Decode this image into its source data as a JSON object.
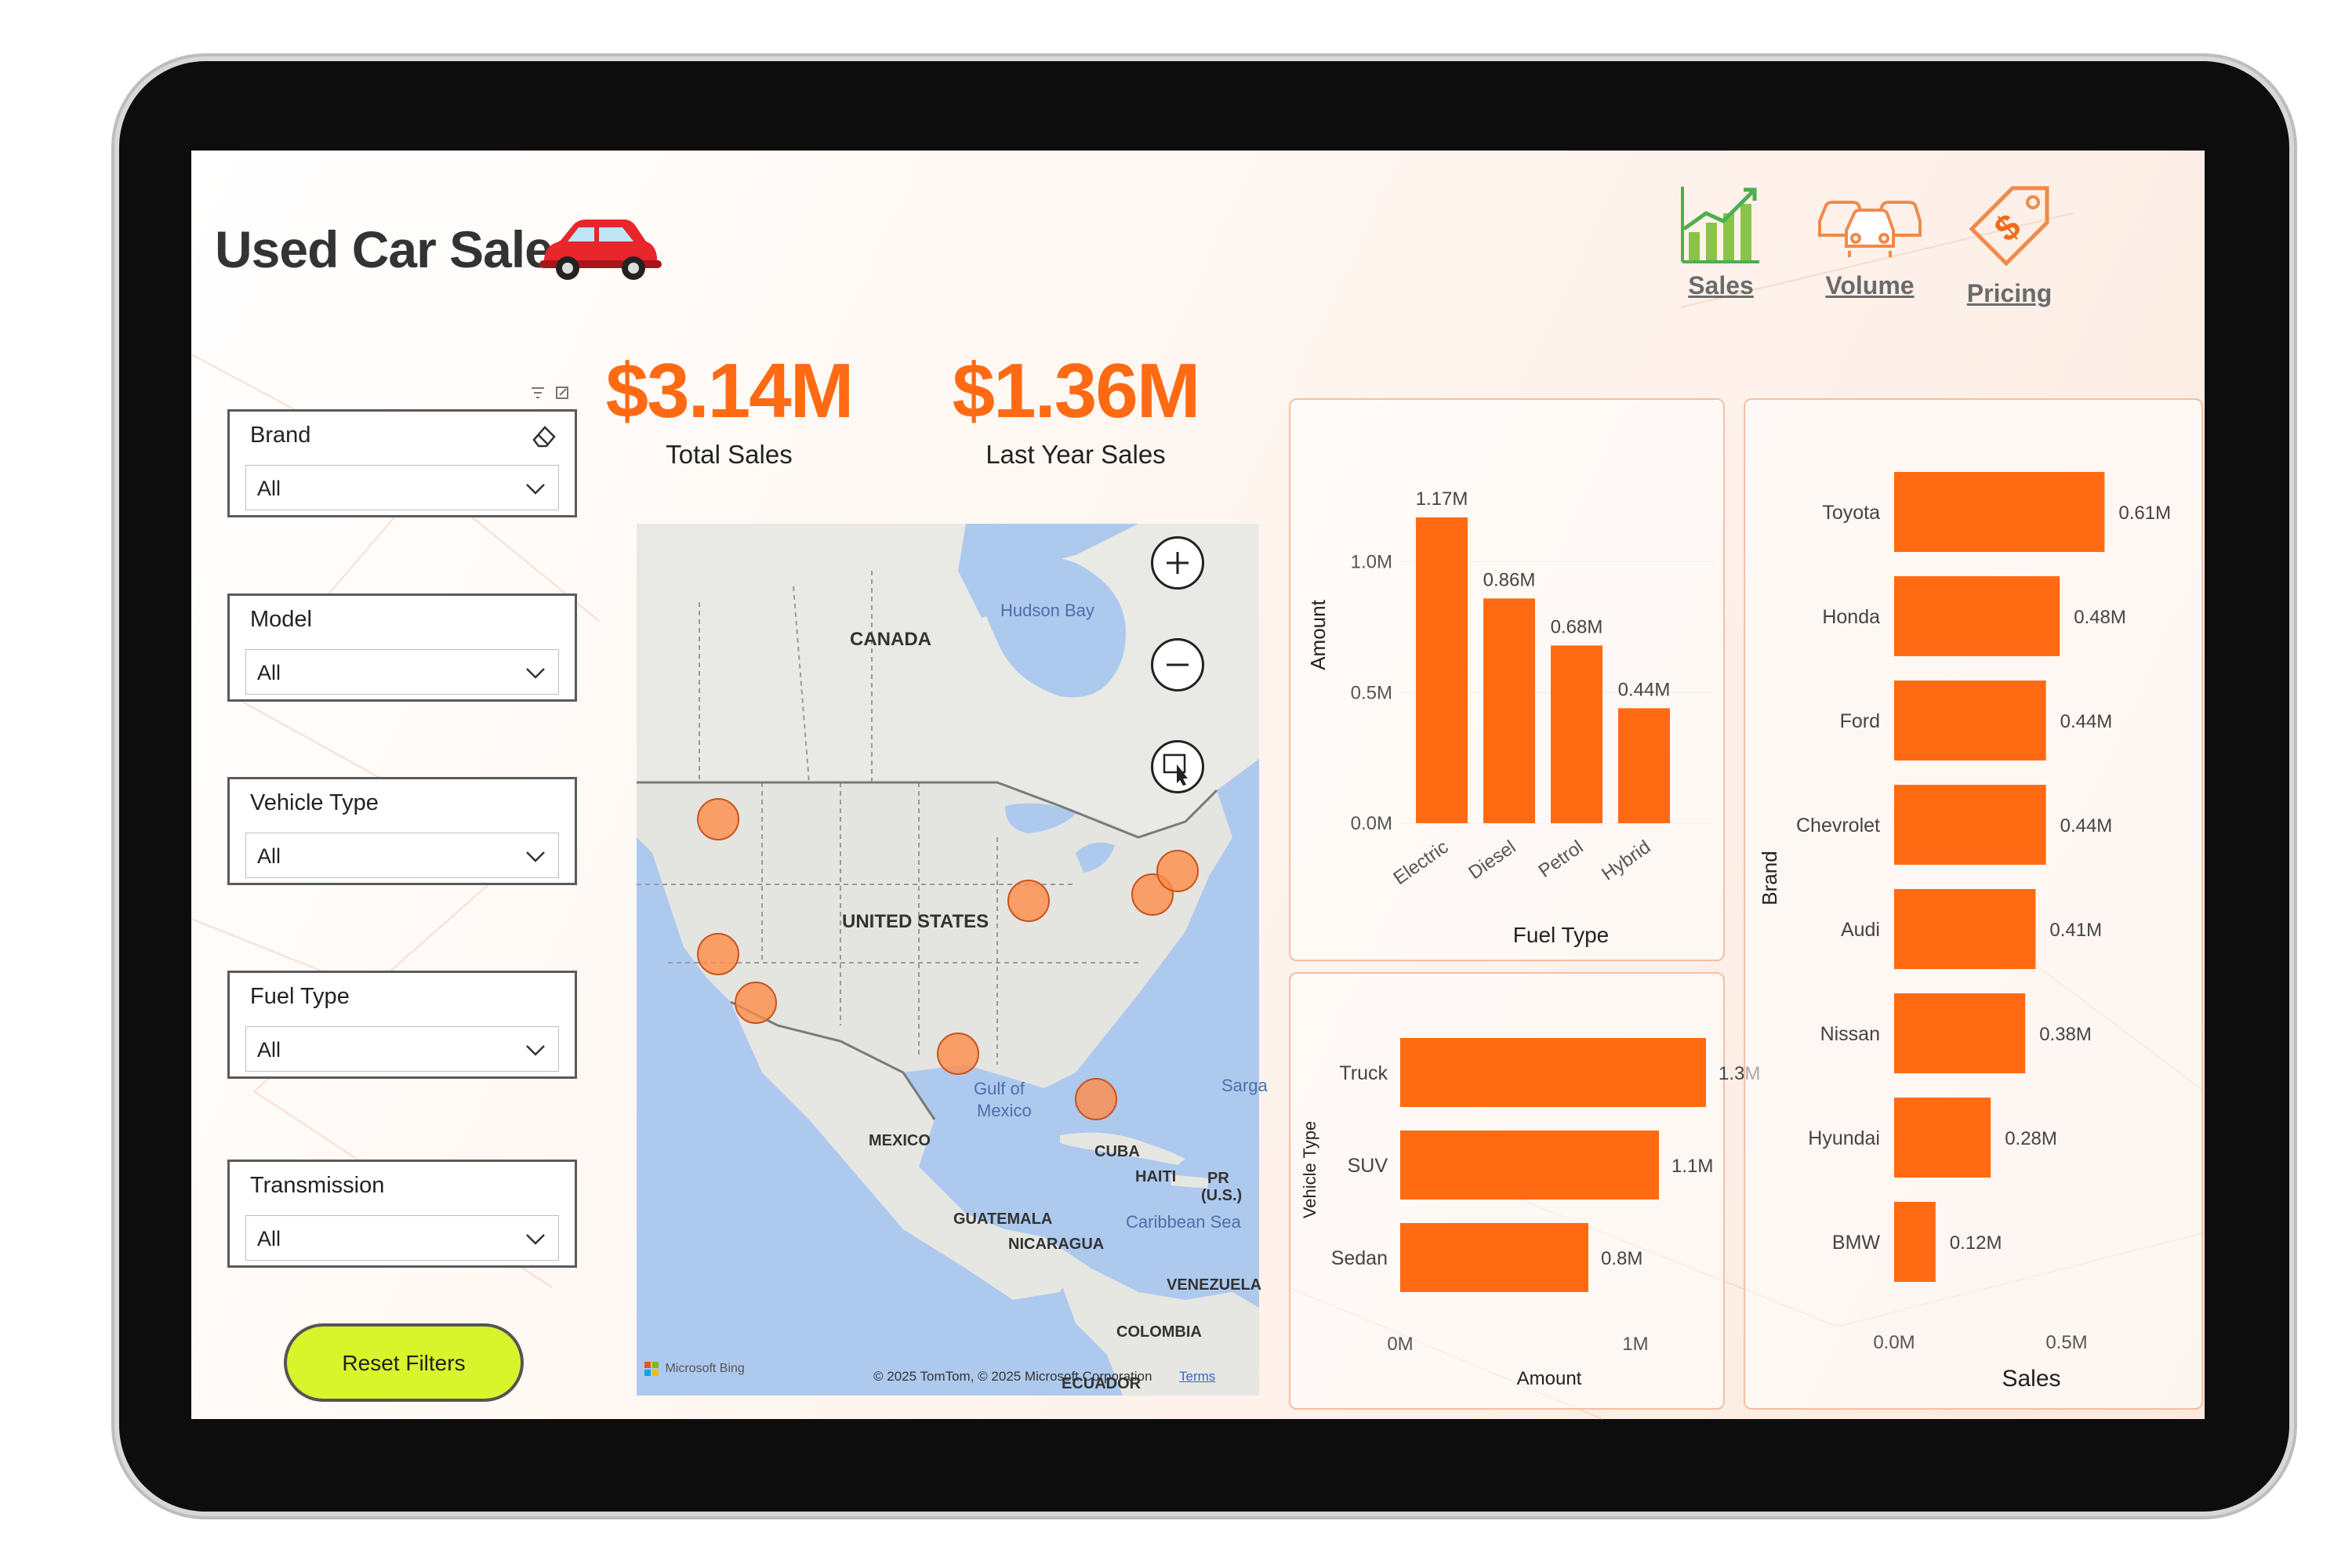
{
  "header": {
    "title": "Used Car Sales"
  },
  "nav": [
    {
      "label": "Sales",
      "icon": "bar-growth-icon"
    },
    {
      "label": "Volume",
      "icon": "cars-icon"
    },
    {
      "label": "Pricing",
      "icon": "price-tag-icon"
    }
  ],
  "kpis": [
    {
      "value": "$3.14M",
      "label": "Total Sales"
    },
    {
      "value": "$1.36M",
      "label": "Last Year Sales"
    }
  ],
  "slicers": [
    {
      "label": "Brand",
      "value": "All"
    },
    {
      "label": "Model",
      "value": "All"
    },
    {
      "label": "Vehicle Type",
      "value": "All"
    },
    {
      "label": "Fuel Type",
      "value": "All"
    },
    {
      "label": "Transmission",
      "value": "All"
    }
  ],
  "reset_label": "Reset Filters",
  "map": {
    "labels": {
      "canada": "CANADA",
      "hudson": "Hudson Bay",
      "us": "UNITED STATES",
      "mexico": "MEXICO",
      "gulf1": "Gulf of",
      "gulf2": "Mexico",
      "cuba": "CUBA",
      "haiti": "HAITI",
      "pr1": "PR",
      "pr2": "(U.S.)",
      "guatemala": "GUATEMALA",
      "nicaragua": "NICARAGUA",
      "caribbean": "Caribbean Sea",
      "venezuela": "VENEZUELA",
      "colombia": "COLOMBIA",
      "ecuador": "ECUADOR",
      "sargasso": "Sarga"
    },
    "bing": "Microsoft Bing",
    "copyright": "© 2025 TomTom, © 2025 Microsoft Corporation",
    "terms": "Terms"
  },
  "colors": {
    "accent": "#ff6a13",
    "reset": "#d8f52c",
    "title": "#333333"
  },
  "chart_data": [
    {
      "type": "bar",
      "orientation": "vertical",
      "categories": [
        "Electric",
        "Diesel",
        "Petrol",
        "Hybrid"
      ],
      "values": [
        1.17,
        0.86,
        0.68,
        0.44
      ],
      "data_labels": [
        "1.17M",
        "0.86M",
        "0.68M",
        "0.44M"
      ],
      "xlabel": "Fuel Type",
      "ylabel": "Amount",
      "ylim": [
        0,
        1.17
      ],
      "yticks": [
        "0.0M",
        "0.5M",
        "1.0M"
      ]
    },
    {
      "type": "bar",
      "orientation": "horizontal",
      "categories": [
        "Truck",
        "SUV",
        "Sedan"
      ],
      "values": [
        1.3,
        1.1,
        0.8
      ],
      "data_labels": [
        "1.3M",
        "1.1M",
        "0.8M"
      ],
      "xlabel": "Amount",
      "ylabel": "Vehicle Type",
      "xticks": [
        "0M",
        "1M"
      ]
    },
    {
      "type": "bar",
      "orientation": "horizontal",
      "categories": [
        "Toyota",
        "Honda",
        "Ford",
        "Chevrolet",
        "Audi",
        "Nissan",
        "Hyundai",
        "BMW"
      ],
      "values": [
        0.61,
        0.48,
        0.44,
        0.44,
        0.41,
        0.38,
        0.28,
        0.12
      ],
      "data_labels": [
        "0.61M",
        "0.48M",
        "0.44M",
        "0.44M",
        "0.41M",
        "0.38M",
        "0.28M",
        "0.12M"
      ],
      "xlabel": "Sales",
      "ylabel": "Brand",
      "xticks": [
        "0.0M",
        "0.5M"
      ]
    }
  ]
}
